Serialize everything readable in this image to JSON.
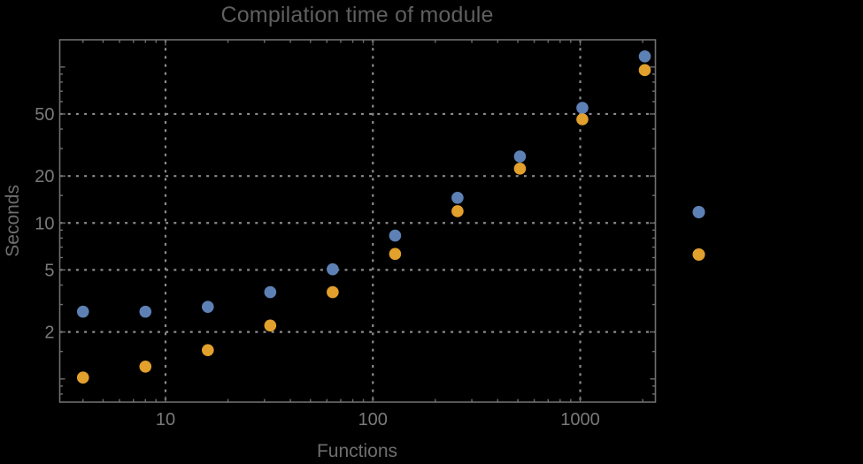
{
  "window": {
    "background": "#000000"
  },
  "chart_data": {
    "type": "scatter",
    "title": "Compilation time of module",
    "xlabel": "Functions",
    "ylabel": "Seconds",
    "x_scale": "log",
    "y_scale": "log",
    "grid": true,
    "x": [
      4,
      8,
      16,
      32,
      64,
      128,
      256,
      512,
      1024,
      2048
    ],
    "series": [
      {
        "name": "blue",
        "color": "#5E81B5",
        "values": [
          2.7,
          2.7,
          2.9,
          3.6,
          5.05,
          8.3,
          14.5,
          26.7,
          54.7,
          117
        ]
      },
      {
        "name": "orange",
        "color": "#E2A02C",
        "values": [
          1.02,
          1.2,
          1.53,
          2.2,
          3.6,
          6.33,
          11.9,
          22.3,
          46.2,
          95.5
        ]
      }
    ],
    "xlim": [
      3.09,
      2305
    ],
    "ylim": [
      0.71,
      149.5
    ],
    "x_ticks_labeled": [
      10,
      100,
      1000
    ],
    "x_ticks_minor": [
      4,
      5,
      6,
      7,
      8,
      9,
      20,
      30,
      40,
      50,
      60,
      70,
      80,
      90,
      200,
      300,
      400,
      500,
      600,
      700,
      800,
      900,
      2000
    ],
    "y_ticks_labeled": [
      2,
      5,
      10,
      20,
      50
    ],
    "y_ticks_medium": [
      1,
      100
    ],
    "y_ticks_minor": [
      0.8,
      0.9,
      1.5,
      3,
      4,
      6,
      7,
      8,
      9,
      15,
      30,
      40,
      60,
      70,
      80,
      90,
      150
    ],
    "x_gridlines": [
      10,
      100,
      1000
    ],
    "y_gridlines": [
      2,
      5,
      10,
      20,
      50
    ],
    "legend_position": "right-outside",
    "legend": [
      {
        "series": "blue",
        "color": "#5E81B5",
        "label": ""
      },
      {
        "series": "orange",
        "color": "#E2A02C",
        "label": ""
      }
    ],
    "colors": {
      "background": "#000000",
      "frame": "#6f6f6f",
      "grid": "#8c8c8c",
      "tick_label": "#7a7a7a",
      "title": "#5f5f5f",
      "axis_label": "#6e6e6e",
      "series_blue": "#5E81B5",
      "series_orange": "#E2A02C"
    }
  }
}
